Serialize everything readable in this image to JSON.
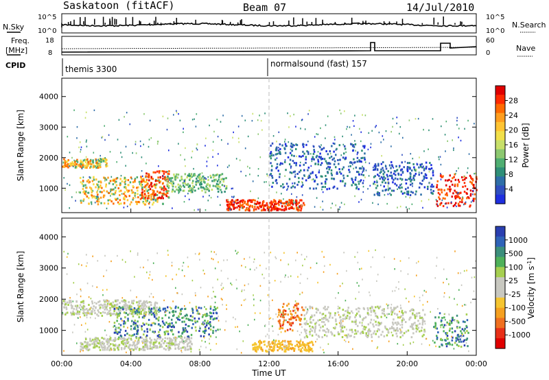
{
  "header": {
    "station": "Saskatoon (fitACF)",
    "beam": "Beam 07",
    "date": "14/Jul/2010"
  },
  "top_panels": {
    "nsky_label": "N.Sky",
    "nsky_ticks": [
      "10^5",
      "10^0"
    ],
    "nsky_right_ticks": [
      "10^5",
      "10^0"
    ],
    "nsearch_label": "N.Search",
    "freq_label": "Freq.",
    "freq_unit": "[MHz]",
    "freq_ticks": [
      "18",
      "8"
    ],
    "nave_ticks": [
      "60",
      "0"
    ],
    "nave_label": "Nave",
    "cpid_label": "CPID",
    "cpid_modes": [
      "themis 3300",
      "normalsound (fast) 157"
    ]
  },
  "chart_data": [
    {
      "type": "heatmap",
      "title": "",
      "ylabel": "Slant Range [km]",
      "xlabel": "",
      "x_ticks": [
        "00:00",
        "04:00",
        "08:00",
        "12:00",
        "16:00",
        "20:00",
        "00:00"
      ],
      "y_ticks": [
        1000,
        2000,
        3000,
        4000
      ],
      "ylim": [
        200,
        4600
      ],
      "xlim_hours": [
        0,
        24
      ],
      "colorbar": {
        "label": "Power [dB]",
        "ticks": [
          28,
          24,
          20,
          16,
          12,
          8,
          4
        ],
        "colors": [
          "#e00000",
          "#ff2a00",
          "#ff6a00",
          "#ff9e1f",
          "#ffc433",
          "#f2e04a",
          "#c8e06a",
          "#8cc870",
          "#4fae72",
          "#2f8f78",
          "#2e6ea8",
          "#2f4fc0",
          "#1f2fe0"
        ]
      },
      "regions": [
        {
          "t": [
            0.0,
            2.6
          ],
          "r": [
            1700,
            2000
          ],
          "level": "high"
        },
        {
          "t": [
            1.0,
            6.2
          ],
          "r": [
            500,
            1400
          ],
          "level": "high"
        },
        {
          "t": [
            4.5,
            6.2
          ],
          "r": [
            700,
            1600
          ],
          "level": "max"
        },
        {
          "t": [
            6.0,
            9.5
          ],
          "r": [
            900,
            1500
          ],
          "level": "mid"
        },
        {
          "t": [
            9.5,
            14.0
          ],
          "r": [
            300,
            650
          ],
          "level": "max"
        },
        {
          "t": [
            12.0,
            17.5
          ],
          "r": [
            1000,
            2500
          ],
          "level": "low"
        },
        {
          "t": [
            18.0,
            21.5
          ],
          "r": [
            800,
            1900
          ],
          "level": "low"
        },
        {
          "t": [
            21.6,
            24.0
          ],
          "r": [
            400,
            1500
          ],
          "level": "max"
        }
      ]
    },
    {
      "type": "heatmap",
      "title": "",
      "ylabel": "Slant Range [km]",
      "xlabel": "Time UT",
      "x_ticks": [
        "00:00",
        "04:00",
        "08:00",
        "12:00",
        "16:00",
        "20:00",
        "00:00"
      ],
      "y_ticks": [
        1000,
        2000,
        3000,
        4000
      ],
      "ylim": [
        200,
        4600
      ],
      "xlim_hours": [
        0,
        24
      ],
      "colorbar": {
        "label": "Velocity [m s^-1]",
        "ticks": [
          "1000",
          "500",
          "100",
          "25",
          "-25",
          "-100",
          "-500",
          "-1000"
        ],
        "colors": [
          "#2a3fb0",
          "#2f63b8",
          "#3c8f7c",
          "#4fb15a",
          "#a6cf50",
          "#c8c8c0",
          "#c8c8c0",
          "#f5c530",
          "#f5a020",
          "#f07020",
          "#e83018",
          "#e00000"
        ]
      },
      "regions": [
        {
          "t": [
            0.0,
            5.5
          ],
          "r": [
            1500,
            2000
          ],
          "level": "zero"
        },
        {
          "t": [
            3.0,
            9.0
          ],
          "r": [
            800,
            1800
          ],
          "level": "pos"
        },
        {
          "t": [
            1.0,
            7.5
          ],
          "r": [
            400,
            800
          ],
          "level": "zero"
        },
        {
          "t": [
            11.0,
            14.5
          ],
          "r": [
            350,
            700
          ],
          "level": "neg"
        },
        {
          "t": [
            12.5,
            14.0
          ],
          "r": [
            1000,
            1900
          ],
          "level": "strongneg"
        },
        {
          "t": [
            14.0,
            21.0
          ],
          "r": [
            800,
            1800
          ],
          "level": "zero"
        },
        {
          "t": [
            21.5,
            23.5
          ],
          "r": [
            500,
            1600
          ],
          "level": "pos"
        }
      ]
    }
  ]
}
